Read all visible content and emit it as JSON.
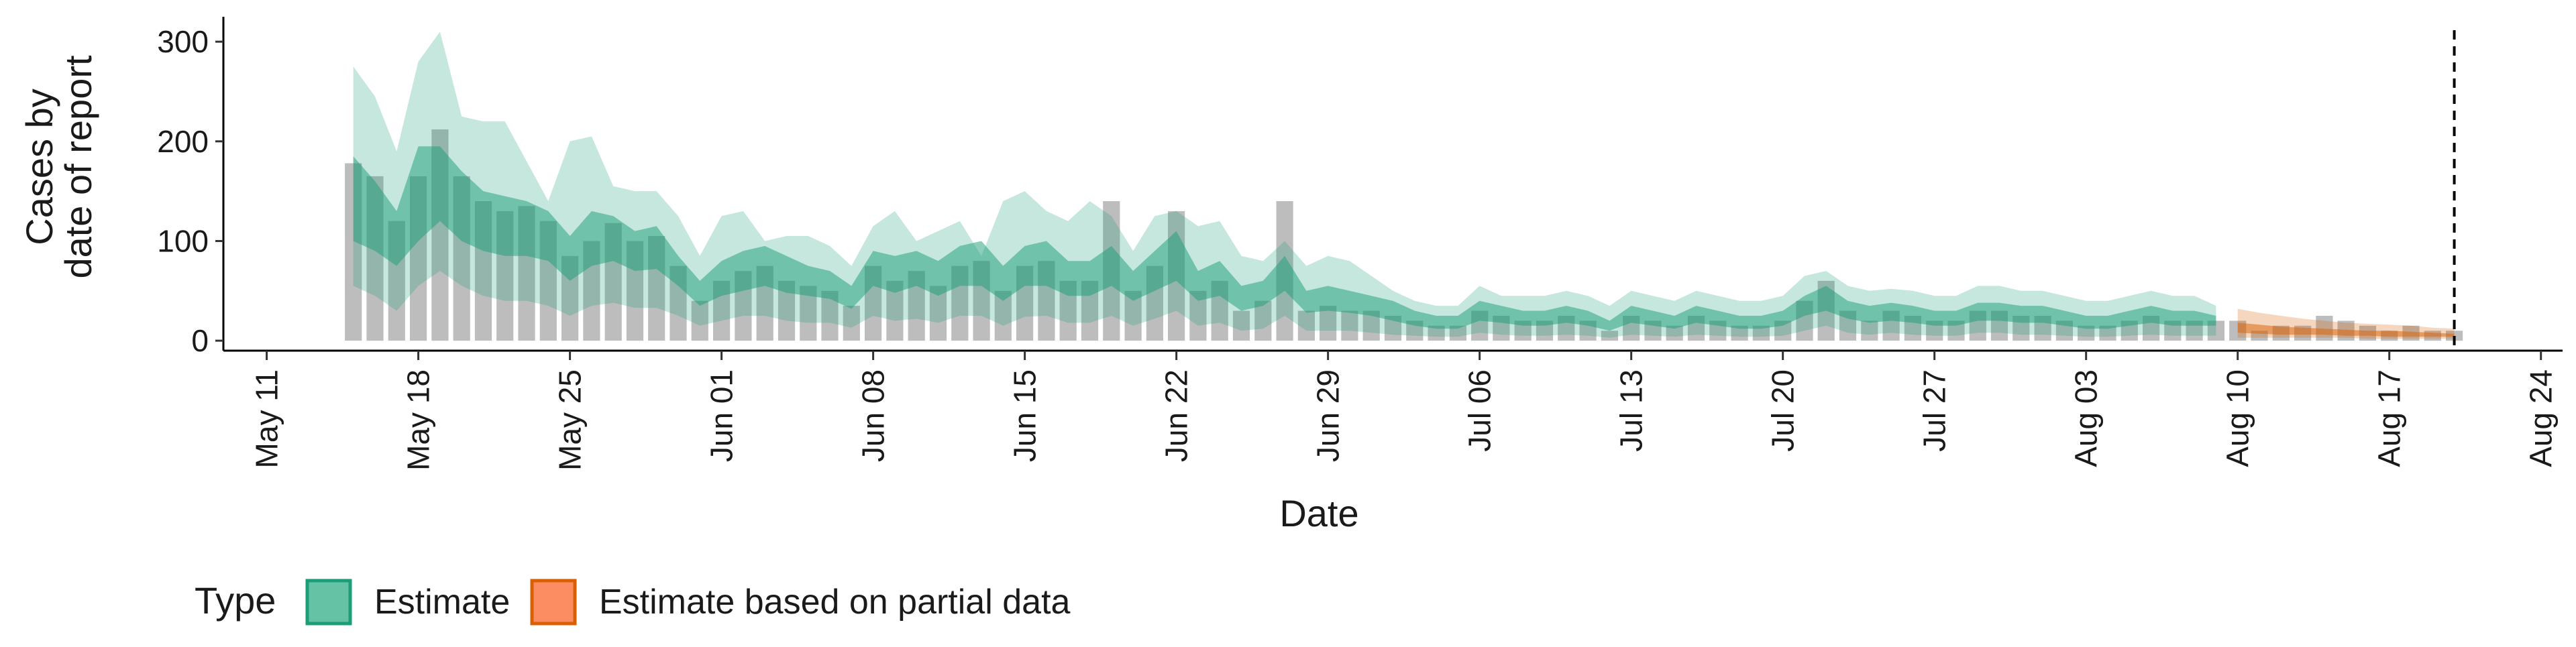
{
  "chart_data": {
    "type": "area",
    "title": "",
    "xlabel": "Date",
    "ylabel": [
      "Cases by",
      "date of report"
    ],
    "xlim": [
      "2020-05-09",
      "2020-08-25"
    ],
    "ylim": [
      -10,
      325
    ],
    "y_ticks": [
      0,
      100,
      200,
      300
    ],
    "x_ticks": [
      {
        "date": "2020-05-11",
        "label": "May 11"
      },
      {
        "date": "2020-05-18",
        "label": "May 18"
      },
      {
        "date": "2020-05-25",
        "label": "May 25"
      },
      {
        "date": "2020-06-01",
        "label": "Jun 01"
      },
      {
        "date": "2020-06-08",
        "label": "Jun 08"
      },
      {
        "date": "2020-06-15",
        "label": "Jun 15"
      },
      {
        "date": "2020-06-22",
        "label": "Jun 22"
      },
      {
        "date": "2020-06-29",
        "label": "Jun 29"
      },
      {
        "date": "2020-07-06",
        "label": "Jul 06"
      },
      {
        "date": "2020-07-13",
        "label": "Jul 13"
      },
      {
        "date": "2020-07-20",
        "label": "Jul 20"
      },
      {
        "date": "2020-07-27",
        "label": "Jul 27"
      },
      {
        "date": "2020-08-03",
        "label": "Aug 03"
      },
      {
        "date": "2020-08-10",
        "label": "Aug 10"
      },
      {
        "date": "2020-08-17",
        "label": "Aug 17"
      },
      {
        "date": "2020-08-24",
        "label": "Aug 24"
      }
    ],
    "vline_date": "2020-08-20",
    "grid": false,
    "legend": {
      "position": "bottom-left",
      "title": "Type",
      "entries": [
        {
          "label": "Estimate",
          "fill": "#66c2a5",
          "stroke": "#1b9e77"
        },
        {
          "label": "Estimate based on partial data",
          "fill": "#fc8d62",
          "stroke": "#d95f02"
        }
      ]
    },
    "colors": {
      "observed_bar": "#bdbdbd",
      "estimate": "#1b9e77",
      "partial": "#d95f02",
      "vline": "#000000"
    },
    "observed": {
      "start_date": "2020-05-15",
      "values": [
        178,
        165,
        120,
        165,
        212,
        165,
        140,
        130,
        135,
        120,
        85,
        100,
        118,
        100,
        105,
        75,
        40,
        60,
        70,
        75,
        60,
        55,
        50,
        35,
        75,
        60,
        70,
        55,
        75,
        80,
        50,
        75,
        80,
        60,
        60,
        140,
        50,
        75,
        130,
        50,
        60,
        30,
        40,
        140,
        30,
        35,
        30,
        30,
        25,
        20,
        15,
        15,
        30,
        25,
        20,
        20,
        25,
        20,
        10,
        25,
        20,
        15,
        25,
        20,
        15,
        15,
        20,
        40,
        60,
        30,
        20,
        30,
        25,
        20,
        20,
        30,
        30,
        25,
        25,
        20,
        15,
        15,
        20,
        25,
        20,
        20,
        20,
        20,
        10,
        15,
        15,
        25,
        20,
        15,
        10,
        15,
        10,
        10
      ]
    },
    "series": [
      {
        "name": "Estimate",
        "dates": [
          "2020-05-15",
          "2020-05-16",
          "2020-05-17",
          "2020-05-18",
          "2020-05-19",
          "2020-05-20",
          "2020-05-21",
          "2020-05-22",
          "2020-05-23",
          "2020-05-24",
          "2020-05-25",
          "2020-05-26",
          "2020-05-27",
          "2020-05-28",
          "2020-05-29",
          "2020-05-30",
          "2020-05-31",
          "2020-06-01",
          "2020-06-02",
          "2020-06-03",
          "2020-06-04",
          "2020-06-05",
          "2020-06-06",
          "2020-06-07",
          "2020-06-08",
          "2020-06-09",
          "2020-06-10",
          "2020-06-11",
          "2020-06-12",
          "2020-06-13",
          "2020-06-14",
          "2020-06-15",
          "2020-06-16",
          "2020-06-17",
          "2020-06-18",
          "2020-06-19",
          "2020-06-20",
          "2020-06-21",
          "2020-06-22",
          "2020-06-23",
          "2020-06-24",
          "2020-06-25",
          "2020-06-26",
          "2020-06-27",
          "2020-06-28",
          "2020-06-29",
          "2020-06-30",
          "2020-07-01",
          "2020-07-02",
          "2020-07-03",
          "2020-07-04",
          "2020-07-05",
          "2020-07-06",
          "2020-07-07",
          "2020-07-08",
          "2020-07-09",
          "2020-07-10",
          "2020-07-11",
          "2020-07-12",
          "2020-07-13",
          "2020-07-14",
          "2020-07-15",
          "2020-07-16",
          "2020-07-17",
          "2020-07-18",
          "2020-07-19",
          "2020-07-20",
          "2020-07-21",
          "2020-07-22",
          "2020-07-23",
          "2020-07-24",
          "2020-07-25",
          "2020-07-26",
          "2020-07-27",
          "2020-07-28",
          "2020-07-29",
          "2020-07-30",
          "2020-07-31",
          "2020-08-01",
          "2020-08-02",
          "2020-08-03",
          "2020-08-04",
          "2020-08-05",
          "2020-08-06",
          "2020-08-07",
          "2020-08-08",
          "2020-08-09"
        ],
        "lower90": [
          55,
          45,
          30,
          55,
          70,
          55,
          45,
          40,
          40,
          35,
          25,
          35,
          38,
          33,
          33,
          25,
          15,
          20,
          25,
          25,
          20,
          18,
          18,
          13,
          25,
          20,
          22,
          18,
          25,
          25,
          15,
          24,
          25,
          18,
          18,
          25,
          15,
          22,
          30,
          15,
          18,
          10,
          12,
          25,
          10,
          10,
          10,
          8,
          6,
          5,
          4,
          4,
          8,
          6,
          5,
          5,
          6,
          5,
          3,
          6,
          5,
          4,
          6,
          5,
          4,
          4,
          5,
          10,
          15,
          8,
          6,
          8,
          6,
          5,
          5,
          8,
          8,
          6,
          6,
          5,
          4,
          4,
          5,
          6,
          5,
          5,
          5
        ],
        "lower50": [
          100,
          90,
          75,
          100,
          120,
          100,
          90,
          85,
          85,
          80,
          60,
          75,
          80,
          70,
          72,
          55,
          35,
          45,
          50,
          55,
          48,
          45,
          42,
          32,
          55,
          48,
          55,
          45,
          55,
          55,
          40,
          55,
          55,
          45,
          45,
          55,
          40,
          50,
          60,
          40,
          45,
          30,
          35,
          50,
          28,
          30,
          28,
          25,
          20,
          15,
          12,
          12,
          20,
          18,
          15,
          15,
          18,
          15,
          10,
          18,
          15,
          12,
          18,
          15,
          12,
          12,
          15,
          25,
          30,
          22,
          18,
          20,
          18,
          15,
          15,
          20,
          20,
          18,
          18,
          15,
          12,
          12,
          15,
          18,
          15,
          15,
          15
        ],
        "upper50": [
          185,
          160,
          130,
          195,
          195,
          170,
          150,
          145,
          140,
          130,
          105,
          130,
          125,
          110,
          115,
          85,
          60,
          80,
          90,
          95,
          85,
          75,
          70,
          55,
          90,
          85,
          90,
          80,
          95,
          100,
          75,
          95,
          100,
          80,
          80,
          95,
          70,
          90,
          110,
          70,
          80,
          55,
          60,
          85,
          50,
          55,
          50,
          45,
          40,
          30,
          25,
          25,
          40,
          35,
          30,
          30,
          35,
          30,
          20,
          35,
          30,
          25,
          35,
          30,
          25,
          25,
          30,
          45,
          55,
          40,
          35,
          38,
          35,
          30,
          30,
          38,
          38,
          35,
          35,
          30,
          25,
          25,
          30,
          35,
          30,
          30,
          25
        ],
        "upper90": [
          275,
          245,
          190,
          280,
          310,
          225,
          220,
          220,
          180,
          140,
          200,
          205,
          155,
          150,
          150,
          125,
          85,
          125,
          130,
          100,
          105,
          105,
          95,
          75,
          115,
          130,
          100,
          110,
          120,
          85,
          140,
          150,
          130,
          120,
          140,
          125,
          90,
          125,
          130,
          115,
          120,
          85,
          80,
          100,
          75,
          85,
          80,
          65,
          50,
          40,
          35,
          35,
          55,
          45,
          45,
          45,
          50,
          45,
          35,
          50,
          45,
          40,
          50,
          45,
          40,
          40,
          45,
          65,
          70,
          55,
          50,
          52,
          50,
          45,
          45,
          55,
          55,
          50,
          50,
          45,
          40,
          40,
          45,
          50,
          45,
          45,
          35
        ]
      },
      {
        "name": "Estimate based on partial data",
        "dates": [
          "2020-08-10",
          "2020-08-11",
          "2020-08-12",
          "2020-08-13",
          "2020-08-14",
          "2020-08-15",
          "2020-08-16",
          "2020-08-17",
          "2020-08-18",
          "2020-08-19",
          "2020-08-20"
        ],
        "lower90": [
          3,
          3,
          3,
          3,
          3,
          3,
          2,
          2,
          2,
          2,
          2
        ],
        "lower50": [
          8,
          7,
          6,
          6,
          6,
          5,
          5,
          4,
          4,
          4,
          4
        ],
        "upper50": [
          18,
          16,
          14,
          13,
          12,
          11,
          10,
          10,
          9,
          8,
          7
        ],
        "upper90": [
          32,
          28,
          25,
          22,
          20,
          18,
          17,
          16,
          15,
          13,
          12
        ]
      }
    ]
  }
}
